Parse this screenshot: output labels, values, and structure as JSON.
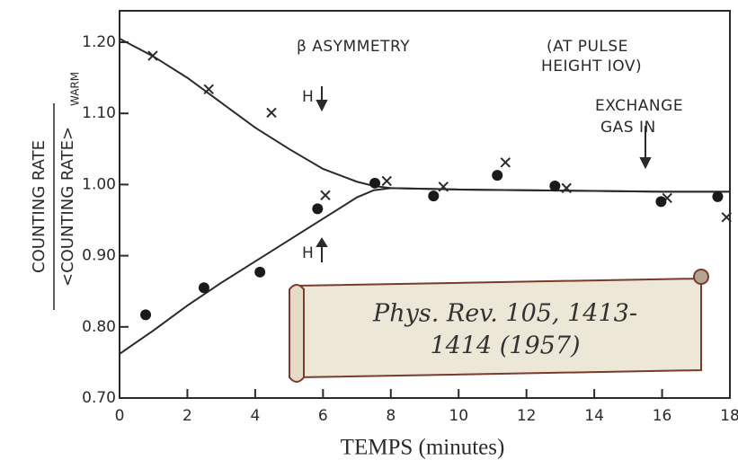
{
  "chart_data": {
    "type": "scatter",
    "x_label": "TEMPS (minutes)",
    "y_label_numerator": "COUNTING RATE",
    "y_label_denominator": "<COUNTING RATE>",
    "y_label_subscript": "WARM",
    "annotations": {
      "title": "β ASYMMETRY",
      "pulse_1": "(AT PULSE",
      "pulse_2": "HEIGHT IOV)",
      "exchange_1": "EXCHANGE",
      "exchange_2": "GAS IN",
      "h_upper": "H",
      "h_lower": "H"
    },
    "xlim": [
      0,
      18
    ],
    "ylim": [
      0.7,
      1.2
    ],
    "xticks": [
      0,
      2,
      4,
      6,
      8,
      10,
      12,
      14,
      16,
      18
    ],
    "yticks": [
      {
        "value": 0.7,
        "label": "0.70"
      },
      {
        "value": 0.8,
        "label": "0.80"
      },
      {
        "value": 0.9,
        "label": "0.90"
      },
      {
        "value": 1.0,
        "label": "1.00"
      },
      {
        "value": 1.1,
        "label": "1.10"
      },
      {
        "value": 1.2,
        "label": "1.20"
      }
    ],
    "series": [
      {
        "marker": "line",
        "color": "#2a2a2a",
        "x": [
          0,
          1,
          2,
          3,
          4,
          5,
          6,
          7,
          7.5,
          8,
          10,
          12,
          14,
          16,
          18
        ],
        "values": [
          1.205,
          1.18,
          1.15,
          1.115,
          1.08,
          1.05,
          1.022,
          1.004,
          0.998,
          0.995,
          0.993,
          0.992,
          0.991,
          0.99,
          0.99
        ]
      },
      {
        "marker": "line",
        "color": "#2a2a2a",
        "x": [
          0,
          1,
          2,
          3,
          4,
          5,
          6,
          7,
          7.5,
          8,
          10,
          12,
          14,
          16,
          18
        ],
        "values": [
          0.762,
          0.795,
          0.83,
          0.862,
          0.892,
          0.922,
          0.952,
          0.982,
          0.992,
          0.995,
          0.993,
          0.992,
          0.991,
          0.99,
          0.99
        ]
      },
      {
        "marker": "x",
        "color": "#2a2a2a",
        "x": [
          0.98,
          2.63,
          4.48,
          6.07,
          7.88,
          9.55,
          11.38,
          13.18,
          16.15,
          17.9
        ],
        "values": [
          1.181,
          1.134,
          1.101,
          0.985,
          1.005,
          0.997,
          1.031,
          0.995,
          0.981,
          0.954
        ]
      },
      {
        "marker": "dot",
        "color": "#1a1a1a",
        "x": [
          0.77,
          2.49,
          4.14,
          5.84,
          7.53,
          9.26,
          11.14,
          12.84,
          15.97,
          17.64
        ],
        "values": [
          0.817,
          0.855,
          0.877,
          0.966,
          1.002,
          0.984,
          1.013,
          0.998,
          0.976,
          0.983
        ]
      }
    ]
  },
  "citation": [
    "Phys. Rev. 105, 1413-",
    "1414 (1957)"
  ]
}
